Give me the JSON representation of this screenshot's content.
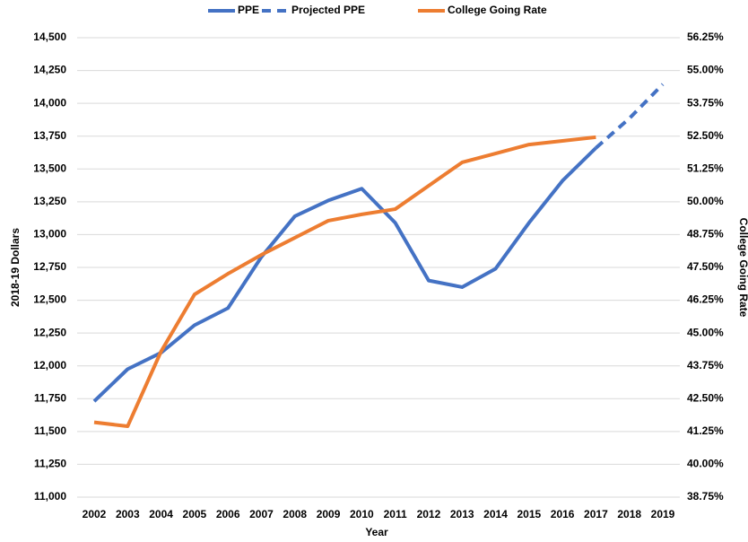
{
  "chart_data": {
    "type": "line",
    "xlabel": "Year",
    "ylabel": "2018-19 Dollars",
    "y2label": "College Going Rate",
    "categories": [
      "2002",
      "2003",
      "2004",
      "2005",
      "2006",
      "2007",
      "2008",
      "2009",
      "2010",
      "2011",
      "2012",
      "2013",
      "2014",
      "2015",
      "2016",
      "2017",
      "2018",
      "2019"
    ],
    "series": [
      {
        "name": "PPE",
        "color": "#4472c4",
        "line_style": "solid",
        "values": [
          11730,
          11975,
          12100,
          12310,
          12440,
          12830,
          13140,
          13260,
          13350,
          13090,
          12650,
          12600,
          12740,
          13090,
          13410,
          13660,
          null,
          null
        ]
      },
      {
        "name": "Projected PPE",
        "color": "#4472c4",
        "line_style": "dashed",
        "values": [
          null,
          null,
          null,
          null,
          null,
          null,
          null,
          null,
          null,
          null,
          null,
          null,
          null,
          null,
          null,
          13660,
          13885,
          14145
        ]
      },
      {
        "name": "College Going Rate",
        "color": "#ed7d31",
        "line_style": "solid",
        "axis": "y2",
        "values": [
          41.6,
          41.45,
          44.3,
          46.47,
          47.26,
          47.98,
          48.63,
          49.28,
          49.52,
          49.72,
          50.61,
          51.5,
          51.84,
          52.18,
          52.32,
          52.46,
          null,
          null
        ]
      }
    ],
    "ylim": [
      11000,
      14500
    ],
    "yticks": [
      {
        "value": 11000,
        "label": "11,000"
      },
      {
        "value": 11250,
        "label": "11,250"
      },
      {
        "value": 11500,
        "label": "11,500"
      },
      {
        "value": 11750,
        "label": "11,750"
      },
      {
        "value": 12000,
        "label": "12,000"
      },
      {
        "value": 12250,
        "label": "12,250"
      },
      {
        "value": 12500,
        "label": "12,500"
      },
      {
        "value": 12750,
        "label": "12,750"
      },
      {
        "value": 13000,
        "label": "13,000"
      },
      {
        "value": 13250,
        "label": "13,250"
      },
      {
        "value": 13500,
        "label": "13,500"
      },
      {
        "value": 13750,
        "label": "13,750"
      },
      {
        "value": 14000,
        "label": "14,000"
      },
      {
        "value": 14250,
        "label": "14,250"
      },
      {
        "value": 14500,
        "label": "14,500"
      }
    ],
    "y2lim": [
      38.75,
      56.25
    ],
    "y2ticks": [
      {
        "value": 38.75,
        "label": "38.75%"
      },
      {
        "value": 40,
        "label": "40.00%"
      },
      {
        "value": 41.25,
        "label": "41.25%"
      },
      {
        "value": 42.5,
        "label": "42.50%"
      },
      {
        "value": 43.75,
        "label": "43.75%"
      },
      {
        "value": 45,
        "label": "45.00%"
      },
      {
        "value": 46.25,
        "label": "46.25%"
      },
      {
        "value": 47.5,
        "label": "47.50%"
      },
      {
        "value": 48.75,
        "label": "48.75%"
      },
      {
        "value": 50,
        "label": "50.00%"
      },
      {
        "value": 51.25,
        "label": "51.25%"
      },
      {
        "value": 52.5,
        "label": "52.50%"
      },
      {
        "value": 53.75,
        "label": "53.75%"
      },
      {
        "value": 55,
        "label": "55.00%"
      },
      {
        "value": 56.25,
        "label": "56.25%"
      }
    ],
    "grid": true,
    "legend": "top"
  }
}
